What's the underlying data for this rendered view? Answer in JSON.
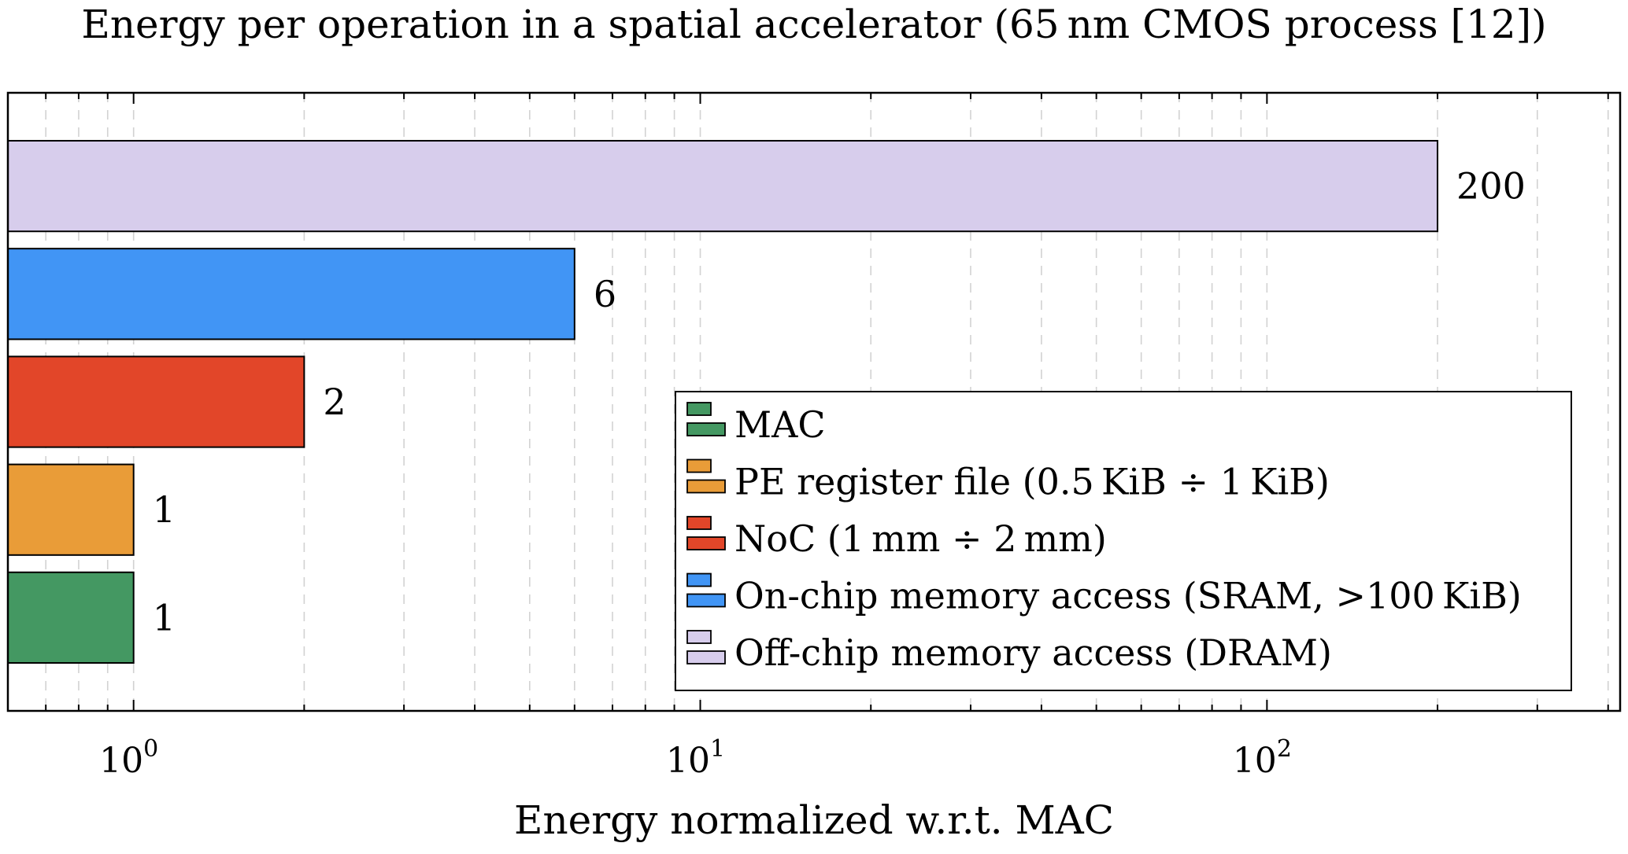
{
  "chart_data": {
    "type": "bar",
    "orientation": "horizontal",
    "title": "Energy per operation in a spatial accelerator (65 nm CMOS process [12])",
    "xlabel": "Energy normalized w.r.t. MAC",
    "ylabel": "",
    "xscale": "log",
    "xlim": [
      0.6,
      420
    ],
    "ticks": [
      {
        "value": 1,
        "base": "10",
        "exp": "0"
      },
      {
        "value": 10,
        "base": "10",
        "exp": "1"
      },
      {
        "value": 100,
        "base": "10",
        "exp": "2"
      }
    ],
    "grid": "vertical-dashed",
    "legend_position": "bottom-right",
    "series": [
      {
        "name": "MAC",
        "value": 1,
        "label": "1",
        "color": "#449862"
      },
      {
        "name": "PE register file (0.5 KiB ÷ 1 KiB)",
        "value": 1,
        "label": "1",
        "color": "#E99C38"
      },
      {
        "name": "NoC (1 mm ÷ 2 mm)",
        "value": 2,
        "label": "2",
        "color": "#E24629"
      },
      {
        "name": "On-chip memory access (SRAM, >100 KiB)",
        "value": 6,
        "label": "6",
        "color": "#4195F5"
      },
      {
        "name": "Off-chip memory access (DRAM)",
        "value": 200,
        "label": "200",
        "color": "#D7CDEC"
      }
    ]
  }
}
